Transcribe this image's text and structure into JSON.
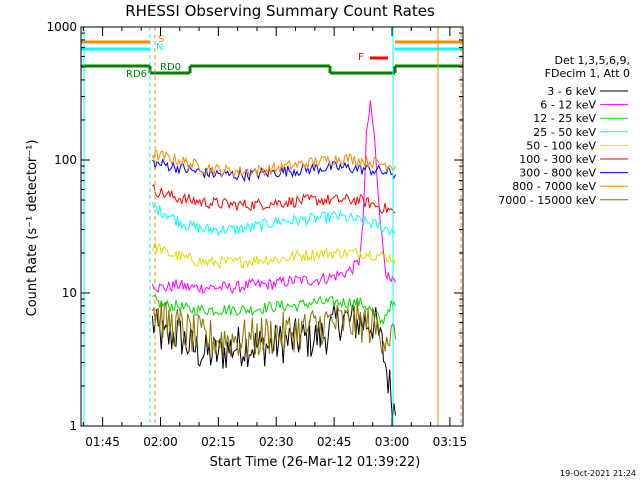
{
  "chart_data": {
    "type": "line",
    "title": "RHESSI Observing Summary Count Rates",
    "xlabel": "Start Time (26-Mar-12 01:39:22)",
    "ylabel": "Count Rate (s⁻¹ detector⁻¹)",
    "y_scale": "log",
    "ylim": [
      1,
      1000
    ],
    "xlim_minutes": [
      0,
      99
    ],
    "y_ticks": [
      {
        "value": 1,
        "label": "1"
      },
      {
        "value": 10,
        "label": "10"
      },
      {
        "value": 100,
        "label": "100"
      },
      {
        "value": 1000,
        "label": "1000"
      }
    ],
    "x_ticks": [
      {
        "minute": 5.6,
        "label": "01:45"
      },
      {
        "minute": 20.6,
        "label": "02:00"
      },
      {
        "minute": 35.6,
        "label": "02:15"
      },
      {
        "minute": 50.6,
        "label": "02:30"
      },
      {
        "minute": 65.6,
        "label": "02:45"
      },
      {
        "minute": 80.6,
        "label": "03:00"
      },
      {
        "minute": 95.6,
        "label": "03:15"
      }
    ],
    "legend": {
      "header": [
        "Det 1,3,5,6,9,",
        "FDecim 1, Att 0"
      ],
      "placement": "right"
    },
    "series": [
      {
        "name": "3 - 6 keV",
        "color": "#000000",
        "points": [
          [
            18.5,
            6
          ],
          [
            20,
            5
          ],
          [
            22,
            4.5
          ],
          [
            25,
            5
          ],
          [
            28,
            4
          ],
          [
            32,
            3.5
          ],
          [
            36,
            3.5
          ],
          [
            40,
            4
          ],
          [
            44,
            4
          ],
          [
            48,
            4
          ],
          [
            52,
            4.2
          ],
          [
            56,
            4.5
          ],
          [
            60,
            4.5
          ],
          [
            64,
            5
          ],
          [
            66,
            6
          ],
          [
            68,
            6.5
          ],
          [
            70,
            6
          ],
          [
            72,
            6
          ],
          [
            74,
            6
          ],
          [
            76,
            6
          ],
          [
            78,
            4
          ],
          [
            80,
            2
          ],
          [
            81.5,
            1.2
          ]
        ]
      },
      {
        "name": "6 - 12 keV",
        "color": "#ff00ff",
        "points": [
          [
            18.5,
            12
          ],
          [
            20,
            11
          ],
          [
            22,
            11
          ],
          [
            25,
            11.5
          ],
          [
            28,
            11
          ],
          [
            32,
            11
          ],
          [
            36,
            11
          ],
          [
            40,
            11
          ],
          [
            44,
            11.5
          ],
          [
            48,
            11.5
          ],
          [
            52,
            12
          ],
          [
            56,
            12.5
          ],
          [
            60,
            12.5
          ],
          [
            64,
            13
          ],
          [
            66,
            13.5
          ],
          [
            68,
            14
          ],
          [
            70,
            15
          ],
          [
            72,
            17
          ],
          [
            73,
            30
          ],
          [
            74,
            150
          ],
          [
            75,
            270
          ],
          [
            76,
            150
          ],
          [
            77,
            60
          ],
          [
            78,
            25
          ],
          [
            79,
            15
          ],
          [
            80,
            12
          ],
          [
            81.5,
            12
          ]
        ]
      },
      {
        "name": "12 - 25 keV",
        "color": "#00dd00",
        "points": [
          [
            18.5,
            9
          ],
          [
            20,
            8.5
          ],
          [
            22,
            8
          ],
          [
            25,
            8
          ],
          [
            28,
            7.5
          ],
          [
            32,
            7.5
          ],
          [
            36,
            7.5
          ],
          [
            40,
            7.5
          ],
          [
            44,
            7.5
          ],
          [
            48,
            7.8
          ],
          [
            52,
            8
          ],
          [
            56,
            8
          ],
          [
            60,
            8.5
          ],
          [
            64,
            8.5
          ],
          [
            66,
            8.5
          ],
          [
            68,
            8.5
          ],
          [
            70,
            8.5
          ],
          [
            72,
            8.5
          ],
          [
            74,
            8
          ],
          [
            76,
            7
          ],
          [
            78,
            6
          ],
          [
            80,
            8
          ],
          [
            81.5,
            8
          ]
        ]
      },
      {
        "name": "25 - 50 keV",
        "color": "#00ffff",
        "points": [
          [
            18.5,
            45
          ],
          [
            20,
            42
          ],
          [
            22,
            40
          ],
          [
            25,
            35
          ],
          [
            28,
            32
          ],
          [
            32,
            30
          ],
          [
            36,
            30
          ],
          [
            40,
            30
          ],
          [
            44,
            31
          ],
          [
            48,
            33
          ],
          [
            52,
            35
          ],
          [
            56,
            35
          ],
          [
            60,
            36
          ],
          [
            64,
            37
          ],
          [
            66,
            38
          ],
          [
            68,
            37
          ],
          [
            70,
            36
          ],
          [
            72,
            35
          ],
          [
            74,
            34
          ],
          [
            76,
            33
          ],
          [
            78,
            31
          ],
          [
            80,
            30
          ],
          [
            81.5,
            29
          ]
        ]
      },
      {
        "name": "50 - 100 keV",
        "color": "#dddd00",
        "points": [
          [
            18.5,
            22
          ],
          [
            20,
            22
          ],
          [
            22,
            20
          ],
          [
            25,
            19
          ],
          [
            28,
            18
          ],
          [
            32,
            17
          ],
          [
            36,
            17
          ],
          [
            40,
            17
          ],
          [
            44,
            17.5
          ],
          [
            48,
            18
          ],
          [
            52,
            18
          ],
          [
            56,
            19
          ],
          [
            60,
            19.5
          ],
          [
            64,
            20
          ],
          [
            66,
            20
          ],
          [
            68,
            20
          ],
          [
            70,
            20
          ],
          [
            72,
            20
          ],
          [
            74,
            20
          ],
          [
            76,
            19.5
          ],
          [
            78,
            19
          ],
          [
            80,
            18.5
          ],
          [
            81.5,
            18
          ]
        ]
      },
      {
        "name": "100 - 300 keV",
        "color": "#ff0000",
        "points": [
          [
            18.5,
            60
          ],
          [
            20,
            58
          ],
          [
            22,
            55
          ],
          [
            25,
            52
          ],
          [
            28,
            50
          ],
          [
            32,
            48
          ],
          [
            36,
            47
          ],
          [
            40,
            46
          ],
          [
            44,
            46
          ],
          [
            48,
            47
          ],
          [
            52,
            48
          ],
          [
            56,
            49
          ],
          [
            60,
            50
          ],
          [
            64,
            50
          ],
          [
            66,
            50
          ],
          [
            68,
            50
          ],
          [
            70,
            50
          ],
          [
            72,
            50
          ],
          [
            74,
            48
          ],
          [
            76,
            46
          ],
          [
            78,
            44
          ],
          [
            80,
            42
          ],
          [
            81.5,
            40
          ]
        ]
      },
      {
        "name": "300 - 800 keV",
        "color": "#0000ff",
        "points": [
          [
            18.5,
            95
          ],
          [
            20,
            93
          ],
          [
            22,
            92
          ],
          [
            25,
            88
          ],
          [
            28,
            84
          ],
          [
            32,
            80
          ],
          [
            36,
            78
          ],
          [
            40,
            77
          ],
          [
            44,
            78
          ],
          [
            48,
            80
          ],
          [
            52,
            82
          ],
          [
            56,
            84
          ],
          [
            60,
            86
          ],
          [
            64,
            88
          ],
          [
            66,
            88
          ],
          [
            68,
            88
          ],
          [
            70,
            87
          ],
          [
            72,
            86
          ],
          [
            74,
            85
          ],
          [
            76,
            84
          ],
          [
            78,
            82
          ],
          [
            80,
            80
          ],
          [
            81.5,
            78
          ]
        ]
      },
      {
        "name": "800 - 7000 keV",
        "color": "#ff8800",
        "points": [
          [
            18.5,
            110
          ],
          [
            20,
            108
          ],
          [
            22,
            105
          ],
          [
            25,
            100
          ],
          [
            28,
            94
          ],
          [
            32,
            88
          ],
          [
            36,
            84
          ],
          [
            40,
            82
          ],
          [
            44,
            82
          ],
          [
            48,
            84
          ],
          [
            52,
            88
          ],
          [
            56,
            92
          ],
          [
            60,
            96
          ],
          [
            64,
            100
          ],
          [
            66,
            102
          ],
          [
            68,
            103
          ],
          [
            70,
            102
          ],
          [
            72,
            100
          ],
          [
            74,
            98
          ],
          [
            76,
            96
          ],
          [
            78,
            94
          ],
          [
            80,
            92
          ],
          [
            81.5,
            90
          ]
        ]
      },
      {
        "name": "7000 - 15000 keV",
        "color": "#8b7000",
        "points": [
          [
            18.5,
            8
          ],
          [
            20,
            7
          ],
          [
            22,
            6
          ],
          [
            25,
            5.5
          ],
          [
            28,
            5
          ],
          [
            32,
            4.5
          ],
          [
            36,
            4.5
          ],
          [
            40,
            4.5
          ],
          [
            44,
            4.5
          ],
          [
            48,
            4.8
          ],
          [
            52,
            5
          ],
          [
            56,
            5.2
          ],
          [
            60,
            5.5
          ],
          [
            64,
            6
          ],
          [
            66,
            6
          ],
          [
            68,
            6
          ],
          [
            70,
            6
          ],
          [
            72,
            6
          ],
          [
            74,
            6
          ],
          [
            76,
            5.5
          ],
          [
            78,
            5
          ],
          [
            80,
            4.8
          ],
          [
            81.5,
            4.5
          ]
        ]
      }
    ],
    "annotations": [
      {
        "label": "S",
        "color": "#ff8800"
      },
      {
        "label": "N",
        "color": "#00ffff"
      },
      {
        "label": "RD0",
        "color": "#008000"
      },
      {
        "label": "RD6",
        "color": "#008000"
      },
      {
        "label": "F",
        "color": "#ff0000"
      }
    ]
  },
  "timestamp": "19-Oct-2021 21:24"
}
